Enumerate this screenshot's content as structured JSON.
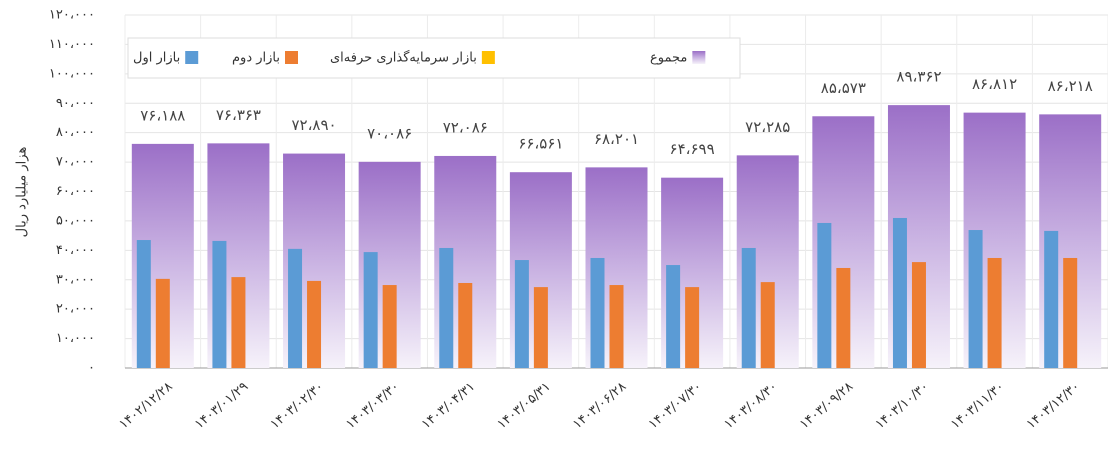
{
  "chart_data": {
    "type": "bar",
    "y_label": "هزار میلیارد ریال",
    "categories": [
      "۱۴۰۲/۱۲/۲۸",
      "۱۴۰۳/۰۱/۲۹",
      "۱۴۰۳/۰۲/۳۰",
      "۱۴۰۳/۰۳/۳۰",
      "۱۴۰۳/۰۴/۳۱",
      "۱۴۰۳/۰۵/۳۱",
      "۱۴۰۳/۰۶/۲۸",
      "۱۴۰۳/۰۷/۳۰",
      "۱۴۰۳/۰۸/۳۰",
      "۱۴۰۳/۰۹/۲۸",
      "۱۴۰۳/۱۰/۳۰",
      "۱۴۰۳/۱۱/۳۰",
      "۱۴۰۳/۱۲/۳۰"
    ],
    "series": [
      {
        "name": "بازار اول",
        "color": "#5b9bd5",
        "values": [
          43500,
          43200,
          40500,
          39400,
          40800,
          36700,
          37400,
          35000,
          40800,
          49300,
          51000,
          46900,
          46600
        ]
      },
      {
        "name": "بازار دوم",
        "color": "#ed7d31",
        "values": [
          30300,
          30900,
          29600,
          28200,
          28900,
          27500,
          28200,
          27500,
          29200,
          34000,
          36000,
          37400,
          37400
        ]
      },
      {
        "name": "بازار سرمایه‌گذاری حرفه‌ای",
        "color": "#ffc000",
        "values": [
          0,
          0,
          0,
          0,
          0,
          0,
          0,
          0,
          0,
          0,
          0,
          0,
          0
        ]
      },
      {
        "name": "مجموع",
        "color": "#9b6fc7",
        "values": [
          76188,
          76363,
          72890,
          70086,
          72086,
          66561,
          68201,
          64699,
          72285,
          85573,
          89362,
          86812,
          86218
        ],
        "value_labels": [
          "۷۶،۱۸۸",
          "۷۶،۳۶۳",
          "۷۲،۸۹۰",
          "۷۰،۰۸۶",
          "۷۲،۰۸۶",
          "۶۶،۵۶۱",
          "۶۸،۲۰۱",
          "۶۴،۶۹۹",
          "۷۲،۲۸۵",
          "۸۵،۵۷۳",
          "۸۹،۳۶۲",
          "۸۶،۸۱۲",
          "۸۶،۲۱۸"
        ]
      }
    ],
    "ylim": [
      0,
      120000
    ],
    "yticks": [
      {
        "value": 0,
        "label": "۰"
      },
      {
        "value": 10000,
        "label": "۱۰،۰۰۰"
      },
      {
        "value": 20000,
        "label": "۲۰،۰۰۰"
      },
      {
        "value": 30000,
        "label": "۳۰،۰۰۰"
      },
      {
        "value": 40000,
        "label": "۴۰،۰۰۰"
      },
      {
        "value": 50000,
        "label": "۵۰،۰۰۰"
      },
      {
        "value": 60000,
        "label": "۶۰،۰۰۰"
      },
      {
        "value": 70000,
        "label": "۷۰،۰۰۰"
      },
      {
        "value": 80000,
        "label": "۸۰،۰۰۰"
      },
      {
        "value": 90000,
        "label": "۹۰،۰۰۰"
      },
      {
        "value": 100000,
        "label": "۱۰۰،۰۰۰"
      },
      {
        "value": 110000,
        "label": "۱۱۰،۰۰۰"
      },
      {
        "value": 120000,
        "label": "۱۲۰،۰۰۰"
      }
    ],
    "grid": true
  }
}
